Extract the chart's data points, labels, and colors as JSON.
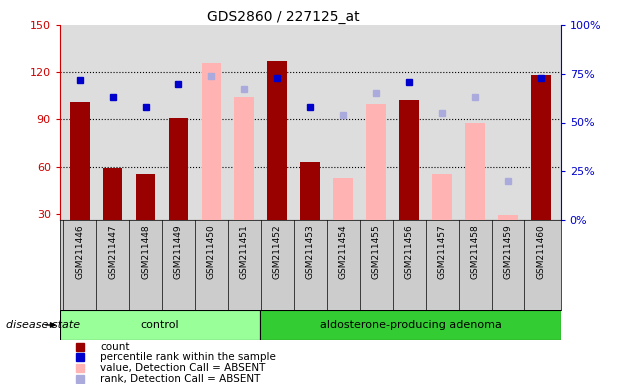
{
  "title": "GDS2860 / 227125_at",
  "samples": [
    "GSM211446",
    "GSM211447",
    "GSM211448",
    "GSM211449",
    "GSM211450",
    "GSM211451",
    "GSM211452",
    "GSM211453",
    "GSM211454",
    "GSM211455",
    "GSM211456",
    "GSM211457",
    "GSM211458",
    "GSM211459",
    "GSM211460"
  ],
  "count": [
    101,
    59,
    55,
    91,
    126,
    104,
    127,
    63,
    53,
    100,
    102,
    55,
    88,
    29,
    118
  ],
  "percentile_rank": [
    72,
    63,
    58,
    70,
    74,
    67,
    73,
    58,
    54,
    65,
    71,
    55,
    63,
    20,
    73
  ],
  "detection_call": [
    "P",
    "P",
    "P",
    "P",
    "A",
    "A",
    "P",
    "P",
    "A",
    "A",
    "P",
    "A",
    "A",
    "A",
    "P"
  ],
  "ylim_left": [
    26,
    150
  ],
  "ylim_right": [
    0,
    100
  ],
  "yticks_left": [
    30,
    60,
    90,
    120,
    150
  ],
  "yticks_right": [
    0,
    25,
    50,
    75,
    100
  ],
  "color_bar_present": "#990000",
  "color_bar_absent": "#FFB3B3",
  "color_rank_present": "#0000CC",
  "color_rank_absent": "#AAAADD",
  "color_axis_left": "#CC0000",
  "color_axis_right": "#0000CC",
  "group_labels": [
    "control",
    "aldosterone-producing adenoma"
  ],
  "ctrl_count": 6,
  "total_count": 15,
  "group_color_ctrl": "#99FF99",
  "group_color_ald": "#33CC33",
  "disease_state_label": "disease state",
  "bar_width": 0.6,
  "plot_bg": "#DDDDDD",
  "xtick_bg": "#CCCCCC",
  "legend_entries": [
    {
      "color": "#990000",
      "label": "count"
    },
    {
      "color": "#0000CC",
      "label": "percentile rank within the sample"
    },
    {
      "color": "#FFB3B3",
      "label": "value, Detection Call = ABSENT"
    },
    {
      "color": "#AAAADD",
      "label": "rank, Detection Call = ABSENT"
    }
  ]
}
